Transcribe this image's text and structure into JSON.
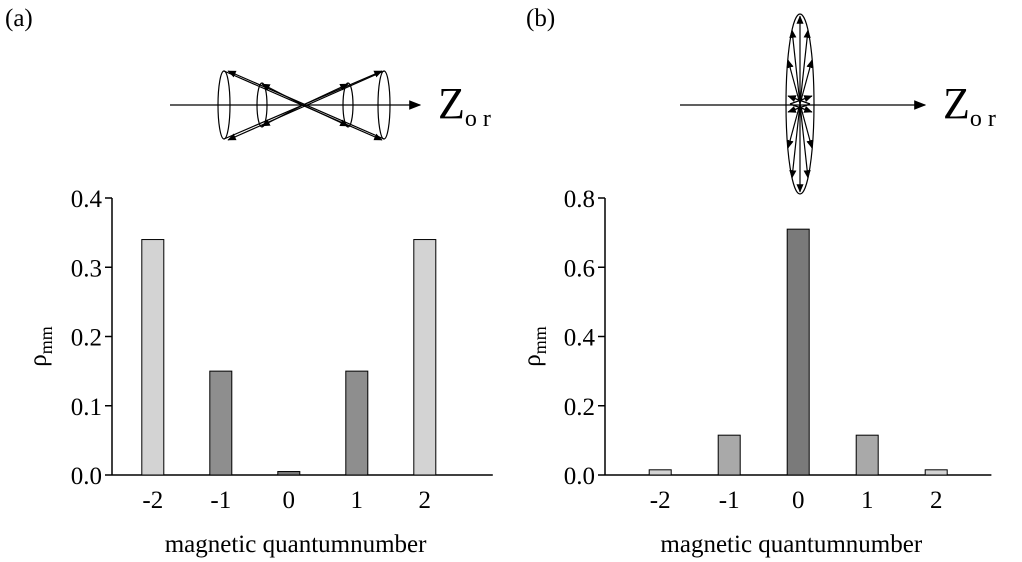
{
  "chart_data": [
    {
      "type": "bar",
      "panel_label": "(a)",
      "ylabel": "ρ",
      "ylabel_sub": "mm",
      "xlabel": "magnetic quantumnumber",
      "diagram_label": "Z",
      "diagram_label_sub": "o r",
      "categories": [
        "-2",
        "-1",
        "0",
        "1",
        "2"
      ],
      "values": [
        0.34,
        0.15,
        0.005,
        0.15,
        0.34
      ],
      "colors": [
        "#d3d3d3",
        "#8e8e8e",
        "#7a7a7a",
        "#8e8e8e",
        "#d3d3d3"
      ],
      "ylim": [
        0,
        0.4
      ],
      "yticks": [
        {
          "value": 0,
          "label": "0.0"
        },
        0.1,
        0.2,
        0.3,
        0.4
      ]
    },
    {
      "type": "bar",
      "panel_label": "(b)",
      "ylabel": "ρ",
      "ylabel_sub": "mm",
      "xlabel": "magnetic quantumnumber",
      "diagram_label": "Z",
      "diagram_label_sub": "o r",
      "categories": [
        "-2",
        "-1",
        "0",
        "1",
        "2"
      ],
      "values": [
        0.015,
        0.115,
        0.71,
        0.115,
        0.015
      ],
      "colors": [
        "#d3d3d3",
        "#a9a9a9",
        "#7a7a7a",
        "#a9a9a9",
        "#d3d3d3"
      ],
      "ylim": [
        0,
        0.8
      ],
      "yticks": [
        {
          "value": 0,
          "label": "0.0"
        },
        0.2,
        0.4,
        0.6,
        0.8
      ]
    }
  ]
}
